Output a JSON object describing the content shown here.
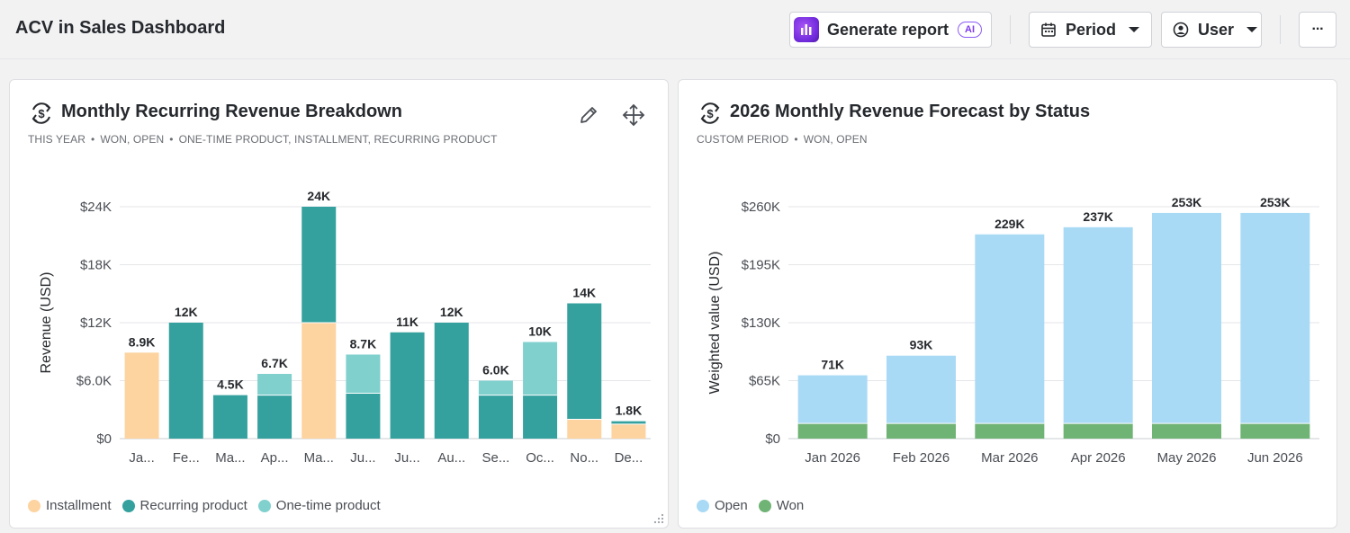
{
  "header": {
    "title": "ACV in Sales Dashboard",
    "generate_label": "Generate report",
    "ai_badge": "AI",
    "period_label": "Period",
    "user_label": "User",
    "more_label": "···"
  },
  "left_card": {
    "title": "Monthly Recurring Revenue Breakdown",
    "filters": [
      "THIS YEAR",
      "WON, OPEN",
      "ONE-TIME PRODUCT, INSTALLMENT, RECURRING PRODUCT"
    ],
    "legend": [
      {
        "name": "Installment",
        "color": "#fdd3a0"
      },
      {
        "name": "Recurring product",
        "color": "#34a19e"
      },
      {
        "name": "One-time product",
        "color": "#80d0ce"
      }
    ]
  },
  "right_card": {
    "title": "2026 Monthly Revenue Forecast by Status",
    "filters": [
      "CUSTOM PERIOD",
      "WON, OPEN"
    ],
    "legend": [
      {
        "name": "Open",
        "color": "#a9daf5"
      },
      {
        "name": "Won",
        "color": "#6fb375"
      }
    ]
  },
  "chart_data": [
    {
      "type": "bar",
      "stacked": true,
      "title": "Monthly Recurring Revenue Breakdown",
      "ylabel": "Revenue (USD)",
      "xlabel": "",
      "ylim": [
        0,
        24000
      ],
      "yticks": [
        "$0",
        "$6.0K",
        "$12K",
        "$18K",
        "$24K"
      ],
      "grid": true,
      "legend_position": "bottom-left",
      "categories": [
        "Ja...",
        "Fe...",
        "Ma...",
        "Ap...",
        "Ma...",
        "Ju...",
        "Ju...",
        "Au...",
        "Se...",
        "Oc...",
        "No...",
        "De..."
      ],
      "totals": [
        "8.9K",
        "12K",
        "4.5K",
        "6.7K",
        "24K",
        "8.7K",
        "11K",
        "12K",
        "6.0K",
        "10K",
        "14K",
        "1.8K"
      ],
      "series": [
        {
          "name": "Installment",
          "color": "#fdd3a0",
          "values": [
            8900,
            0,
            0,
            0,
            12000,
            0,
            0,
            0,
            0,
            0,
            2000,
            1500
          ]
        },
        {
          "name": "Recurring product",
          "color": "#34a19e",
          "values": [
            0,
            12000,
            4500,
            4500,
            12000,
            4700,
            11000,
            12000,
            4500,
            4500,
            12000,
            300
          ]
        },
        {
          "name": "One-time product",
          "color": "#80d0ce",
          "values": [
            0,
            0,
            0,
            2200,
            0,
            4000,
            0,
            0,
            1500,
            5500,
            0,
            0
          ]
        }
      ]
    },
    {
      "type": "bar",
      "stacked": true,
      "title": "2026 Monthly Revenue Forecast by Status",
      "ylabel": "Weighted value (USD)",
      "xlabel": "",
      "ylim": [
        0,
        260000
      ],
      "yticks": [
        "$0",
        "$65K",
        "$130K",
        "$195K",
        "$260K"
      ],
      "grid": true,
      "legend_position": "bottom-left",
      "categories": [
        "Jan 2026",
        "Feb 2026",
        "Mar 2026",
        "Apr 2026",
        "May 2026",
        "Jun 2026"
      ],
      "totals": [
        "71K",
        "93K",
        "229K",
        "237K",
        "253K",
        "253K"
      ],
      "series": [
        {
          "name": "Won",
          "color": "#6fb375",
          "values": [
            17000,
            17000,
            17000,
            17000,
            17000,
            17000
          ]
        },
        {
          "name": "Open",
          "color": "#a9daf5",
          "values": [
            54000,
            76000,
            212000,
            220000,
            236000,
            236000
          ]
        }
      ]
    }
  ]
}
